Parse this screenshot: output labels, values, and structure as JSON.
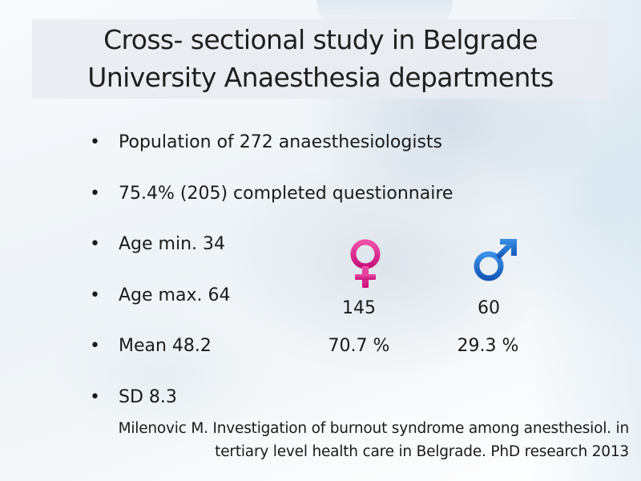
{
  "slide": {
    "title_line1": "Cross- sectional study in Belgrade",
    "title_line2": "University Anaesthesia departments",
    "bullets": [
      "Population of 272 anaesthesiologists",
      "75.4% (205) completed questionnaire",
      "Age min. 34",
      "Age max. 64",
      "Mean 48.2",
      "SD 8.3"
    ],
    "bullet_symbol": "•",
    "female": {
      "icon": "female-symbol",
      "color": "#E0208A",
      "count": "145",
      "percent": "70.7 %"
    },
    "male": {
      "icon": "male-symbol",
      "color": "#1C6FD0",
      "count": "60",
      "percent": "29.3 %"
    },
    "reference_line1": "Milenovic M. Investigation of burnout syndrome among anesthesiol. in",
    "reference_line2": "tertiary level health care in Belgrade. PhD research 2013"
  }
}
